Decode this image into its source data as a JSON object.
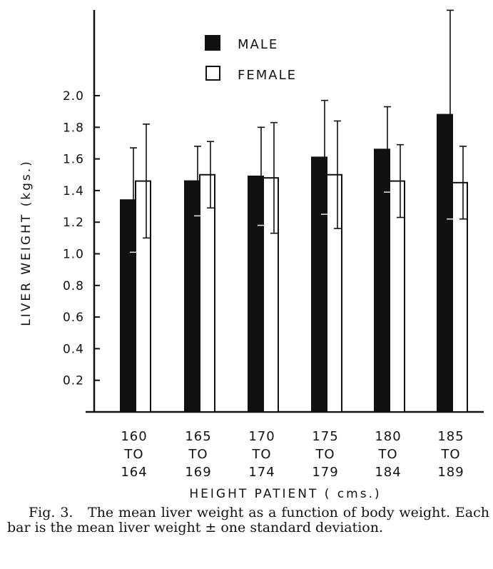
{
  "chart_data": {
    "type": "bar",
    "categories": [
      "160 TO 164",
      "165 TO 169",
      "170 TO 174",
      "175 TO 179",
      "180 TO 184",
      "185 TO 189"
    ],
    "category_lines": [
      [
        "160",
        "TO",
        "164"
      ],
      [
        "165",
        "TO",
        "169"
      ],
      [
        "170",
        "TO",
        "174"
      ],
      [
        "175",
        "TO",
        "179"
      ],
      [
        "180",
        "TO",
        "184"
      ],
      [
        "185",
        "TO",
        "189"
      ]
    ],
    "series": [
      {
        "name": "MALE",
        "values": [
          1.34,
          1.46,
          1.49,
          1.61,
          1.66,
          1.88
        ],
        "sd": [
          0.33,
          0.22,
          0.31,
          0.36,
          0.27,
          0.66
        ],
        "fill": "#111111"
      },
      {
        "name": "FEMALE",
        "values": [
          1.46,
          1.5,
          1.48,
          1.5,
          1.46,
          1.45
        ],
        "sd": [
          0.36,
          0.21,
          0.35,
          0.34,
          0.23,
          0.23
        ],
        "fill": "#ffffff"
      }
    ],
    "ylabel": "LIVER WEIGHT (kgs.)",
    "xlabel": "HEIGHT PATIENT ( cms.)",
    "ylim": [
      0,
      2.0
    ],
    "yticks": [
      "0.2",
      "0.4",
      "0.6",
      "0.8",
      "1.0",
      "1.2",
      "1.4",
      "1.6",
      "1.8",
      "2.0"
    ],
    "legend_placement": "top-center",
    "grid": false
  },
  "caption": {
    "label": "Fig. 3.",
    "text": "The mean liver weight as a function of body weight. Each bar is the mean liver weight ± one standard deviation."
  }
}
